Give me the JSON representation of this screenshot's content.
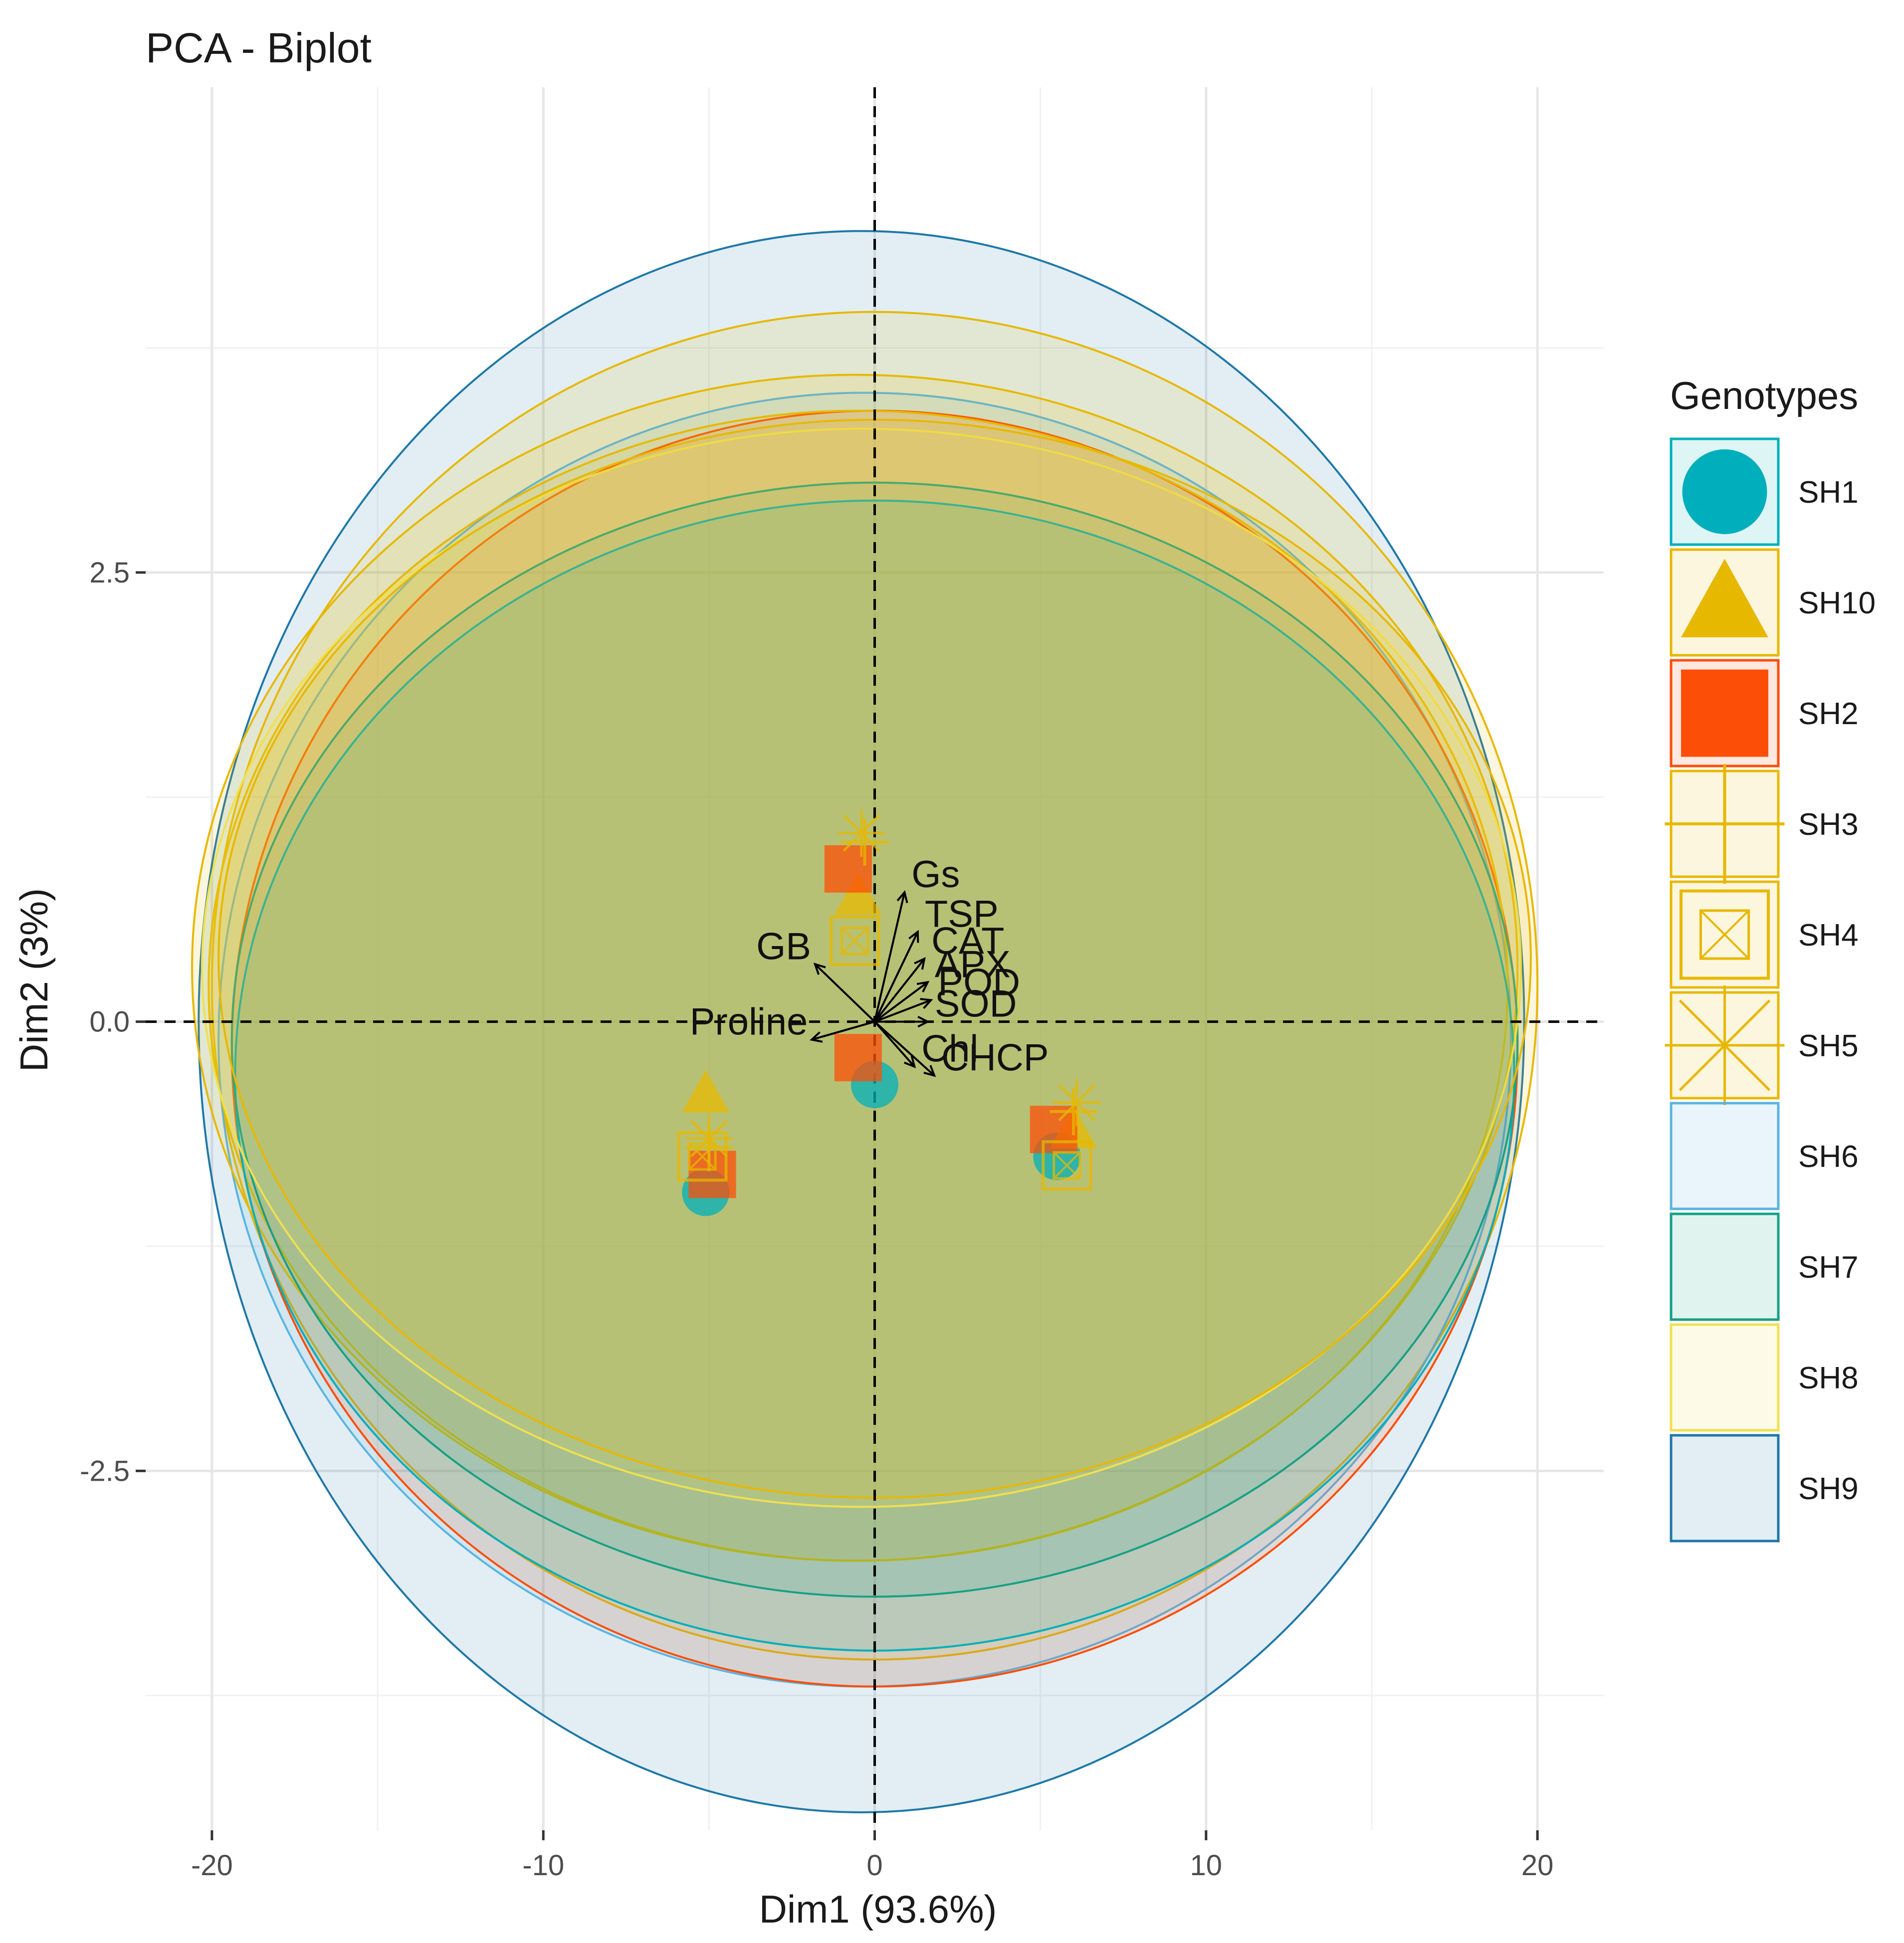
{
  "chart_data": {
    "type": "scatter",
    "subtype": "pca-biplot",
    "title": "PCA - Biplot",
    "xlabel": "Dim1 (93.6%)",
    "ylabel": "Dim2 (3%)",
    "xlim": [
      -22,
      22
    ],
    "ylim": [
      -4.5,
      5.2
    ],
    "x_ticks": [
      -20,
      -10,
      0,
      10,
      20
    ],
    "x_tick_labels": [
      "-20",
      "-10",
      "0",
      "10",
      "20"
    ],
    "y_ticks": [
      -2.5,
      0,
      2.5
    ],
    "y_tick_labels": [
      "-2.5",
      "0.0",
      "2.5"
    ],
    "grid": true,
    "legend": {
      "title": "Genotypes",
      "position": "right"
    },
    "series": [
      {
        "name": "SH1",
        "color": "#00AFBB",
        "shape": "circle",
        "points": [
          [
            0,
            -0.35
          ],
          [
            -5.1,
            -0.95
          ],
          [
            5.5,
            -0.75
          ]
        ],
        "ellipse": {
          "cx": 0,
          "cy": -0.3,
          "rx": 19.3,
          "ry": 3.2
        }
      },
      {
        "name": "SH10",
        "color": "#E7B800",
        "shape": "triangle",
        "points": [
          [
            -0.5,
            0.7
          ],
          [
            -5.1,
            -0.4
          ],
          [
            6.0,
            -0.6
          ]
        ],
        "ellipse": {
          "cx": -0.6,
          "cy": 0.3,
          "rx": 20.0,
          "ry": 3.3
        }
      },
      {
        "name": "SH2",
        "color": "#FC4E07",
        "shape": "square",
        "points": [
          [
            -0.8,
            0.85
          ],
          [
            -4.9,
            -0.85
          ],
          [
            5.4,
            -0.6
          ],
          [
            -0.5,
            -0.2
          ]
        ],
        "ellipse": {
          "cx": 0,
          "cy": -0.15,
          "rx": 19.4,
          "ry": 3.55
        }
      },
      {
        "name": "SH3",
        "color": "#E7B800",
        "shape": "plus",
        "points": [
          [
            -0.3,
            1.0
          ],
          [
            -5.0,
            -0.7
          ],
          [
            6.0,
            -0.5
          ]
        ],
        "ellipse": {
          "cx": -0.5,
          "cy": 0.2,
          "rx": 19.6,
          "ry": 3.2
        }
      },
      {
        "name": "SH4",
        "color": "#E7B800",
        "shape": "square-cross",
        "points": [
          [
            -0.6,
            0.45
          ],
          [
            -5.2,
            -0.75
          ],
          [
            5.8,
            -0.8
          ]
        ],
        "ellipse": {
          "cx": 0,
          "cy": 0.35,
          "rx": 19.8,
          "ry": 3.0
        }
      },
      {
        "name": "SH5",
        "color": "#E7B800",
        "shape": "asterisk",
        "points": [
          [
            -0.4,
            1.05
          ],
          [
            -5.0,
            -0.65
          ],
          [
            6.1,
            -0.45
          ]
        ],
        "ellipse": {
          "cx": 0,
          "cy": 0.2,
          "rx": 20.0,
          "ry": 3.75
        }
      },
      {
        "name": "SH6",
        "color": "#5AB4E0",
        "shape": "none",
        "points": [],
        "ellipse": {
          "cx": -0.3,
          "cy": -0.1,
          "rx": 19.5,
          "ry": 3.6
        }
      },
      {
        "name": "SH7",
        "color": "#16A085",
        "shape": "none",
        "points": [],
        "ellipse": {
          "cx": 0,
          "cy": -0.1,
          "rx": 19.4,
          "ry": 3.1
        }
      },
      {
        "name": "SH8",
        "color": "#F0E050",
        "shape": "none",
        "points": [],
        "ellipse": {
          "cx": -0.4,
          "cy": 0.3,
          "rx": 19.9,
          "ry": 3.0
        }
      },
      {
        "name": "SH9",
        "color": "#1F78A8",
        "shape": "none",
        "points": [],
        "ellipse": {
          "cx": -0.4,
          "cy": 0.0,
          "rx": 20.0,
          "ry": 4.4
        }
      }
    ],
    "variables": [
      {
        "name": "Gs",
        "x": 0.9,
        "y": 0.72
      },
      {
        "name": "TSP",
        "x": 1.3,
        "y": 0.5
      },
      {
        "name": "GB",
        "x": -1.8,
        "y": 0.32
      },
      {
        "name": "CAT",
        "x": 1.5,
        "y": 0.35
      },
      {
        "name": "APX",
        "x": 1.6,
        "y": 0.22
      },
      {
        "name": "POD",
        "x": 1.7,
        "y": 0.12
      },
      {
        "name": "SOD",
        "x": 1.6,
        "y": 0.0
      },
      {
        "name": "Proline",
        "x": -1.9,
        "y": -0.1
      },
      {
        "name": "Chl",
        "x": 1.2,
        "y": -0.25
      },
      {
        "name": "CHCP",
        "x": 1.8,
        "y": -0.3
      }
    ]
  }
}
